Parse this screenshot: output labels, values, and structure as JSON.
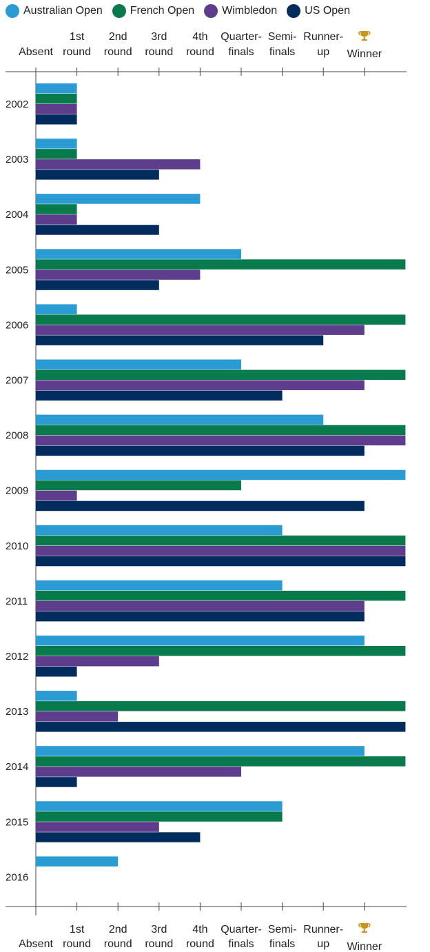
{
  "chart_data": {
    "type": "bar",
    "orientation": "horizontal",
    "categories": [
      "2002",
      "2003",
      "2004",
      "2005",
      "2006",
      "2007",
      "2008",
      "2009",
      "2010",
      "2011",
      "2012",
      "2013",
      "2014",
      "2015",
      "2016"
    ],
    "levels": [
      {
        "label": [
          "Absent"
        ]
      },
      {
        "label": [
          "1st",
          "round"
        ]
      },
      {
        "label": [
          "2nd",
          "round"
        ]
      },
      {
        "label": [
          "3rd",
          "round"
        ]
      },
      {
        "label": [
          "4th",
          "round"
        ]
      },
      {
        "label": [
          "Quarter-",
          "finals"
        ]
      },
      {
        "label": [
          "Semi-",
          "finals"
        ]
      },
      {
        "label": [
          "Runner-",
          "up"
        ]
      },
      {
        "label": [
          "Winner"
        ],
        "icon": "trophy-icon"
      }
    ],
    "series": [
      {
        "name": "Australian Open",
        "color": "#2a9bd3",
        "values": [
          0,
          0,
          3,
          4,
          0,
          4,
          6,
          8,
          5,
          5,
          7,
          0,
          7,
          5,
          1
        ]
      },
      {
        "name": "French Open",
        "color": "#087a4b",
        "values": [
          0,
          0,
          0,
          8,
          8,
          8,
          8,
          4,
          8,
          8,
          8,
          8,
          8,
          5,
          null
        ]
      },
      {
        "name": "Wimbledon",
        "color": "#5e3d8d",
        "values": [
          0,
          3,
          0,
          3,
          7,
          7,
          8,
          0,
          8,
          7,
          2,
          1,
          4,
          2,
          null
        ]
      },
      {
        "name": "US Open",
        "color": "#022c5e",
        "values": [
          0,
          2,
          2,
          2,
          6,
          5,
          7,
          7,
          8,
          7,
          0,
          8,
          0,
          3,
          null
        ]
      }
    ],
    "xlim": [
      0,
      8
    ],
    "legend_position": "top-left",
    "axis_labels_position": "top-and-bottom"
  }
}
